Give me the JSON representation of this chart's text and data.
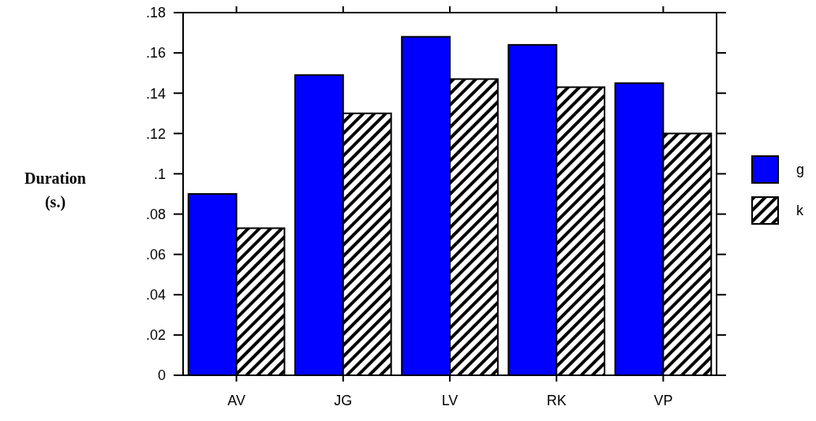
{
  "chart_data": {
    "type": "bar",
    "ylabel": "Duration (s.)",
    "categories": [
      "AV",
      "JG",
      "LV",
      "RK",
      "VP"
    ],
    "series": [
      {
        "name": "g",
        "color": "#0000ff",
        "values": [
          0.09,
          0.149,
          0.168,
          0.164,
          0.145
        ]
      },
      {
        "name": "k",
        "color": "#000000",
        "values": [
          0.073,
          0.13,
          0.147,
          0.143,
          0.12
        ]
      }
    ],
    "ylim": [
      0,
      0.18
    ],
    "yticks": [
      0,
      {
        "value": 0.02,
        "label": ".02"
      },
      {
        "value": 0.04,
        "label": ".04"
      },
      {
        "value": 0.06,
        "label": ".06"
      },
      {
        "value": 0.08,
        "label": ".08"
      },
      {
        "value": 0.1,
        "label": ".1"
      },
      {
        "value": 0.12,
        "label": ".12"
      },
      {
        "value": 0.14,
        "label": ".14"
      },
      {
        "value": 0.16,
        "label": ".16"
      },
      {
        "value": 0.18,
        "label": ".18"
      }
    ],
    "grid": false,
    "legend": "right"
  }
}
